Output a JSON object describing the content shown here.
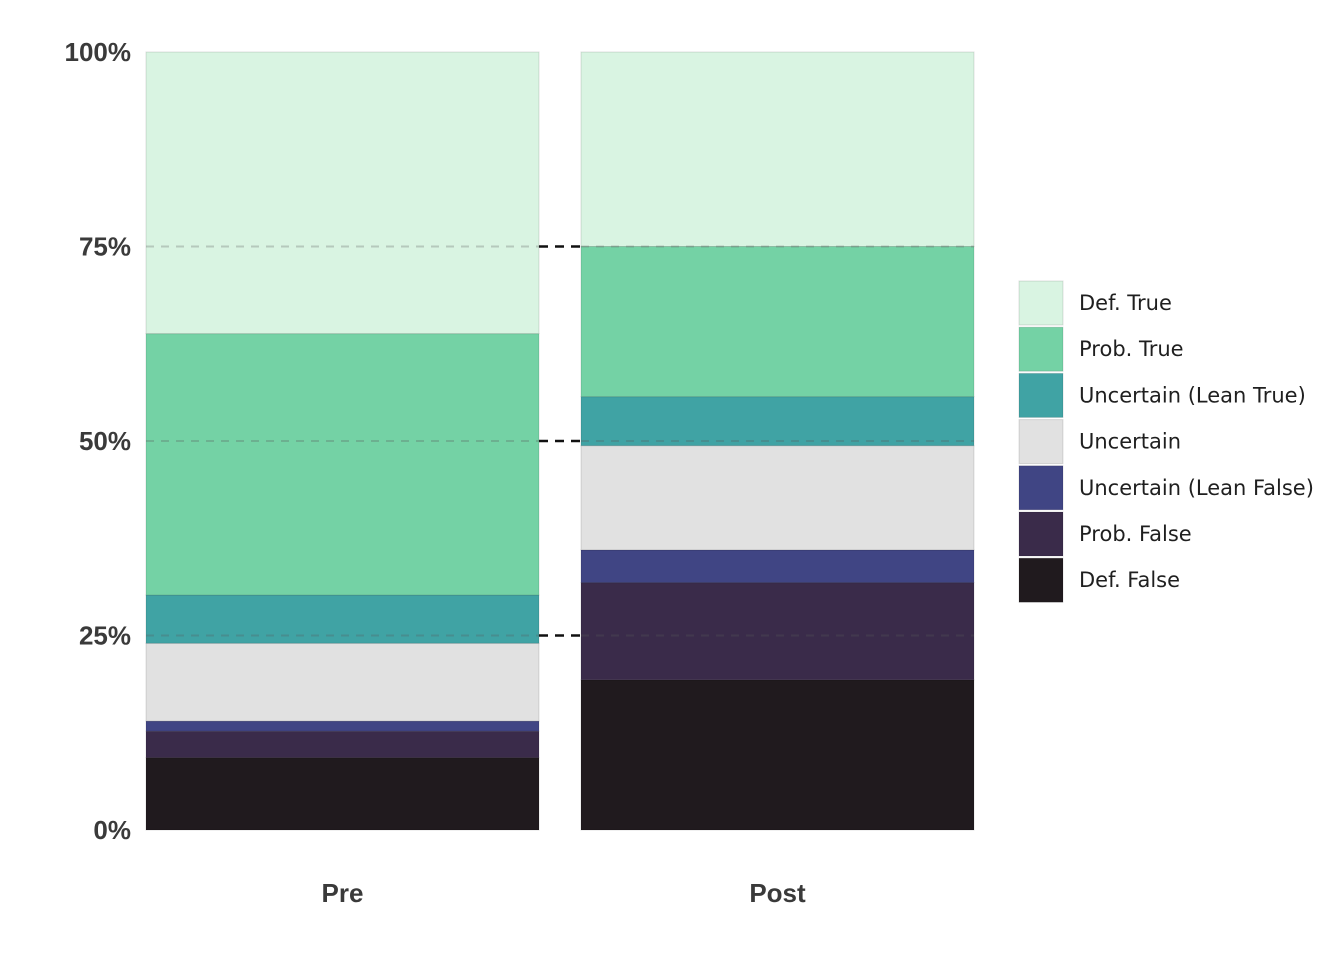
{
  "chart_data": {
    "type": "bar",
    "stacked": true,
    "normalized": true,
    "categories": [
      "Pre",
      "Post"
    ],
    "y_ticks": [
      "0%",
      "25%",
      "50%",
      "75%",
      "100%"
    ],
    "ylim": [
      0,
      100
    ],
    "grid": "dashed horizontal at 25%, 50%, 75%",
    "legend_position": "right",
    "series": [
      {
        "name": "Def. False",
        "color": "#201a1e",
        "values": [
          9.3,
          19.3
        ]
      },
      {
        "name": "Prob. False",
        "color": "#3a2b4a",
        "values": [
          3.4,
          12.5
        ]
      },
      {
        "name": "Uncertain (Lean False)",
        "color": "#404584",
        "values": [
          1.3,
          4.2
        ]
      },
      {
        "name": "Uncertain",
        "color": "#e1e1e1",
        "values": [
          10.0,
          13.4
        ]
      },
      {
        "name": "Uncertain (Lean True)",
        "color": "#40a3a4",
        "values": [
          6.2,
          6.3
        ]
      },
      {
        "name": "Prob. True",
        "color": "#74d2a5",
        "values": [
          33.6,
          19.3
        ]
      },
      {
        "name": "Def. True",
        "color": "#d9f4e2",
        "values": [
          36.2,
          25.0
        ]
      }
    ]
  }
}
